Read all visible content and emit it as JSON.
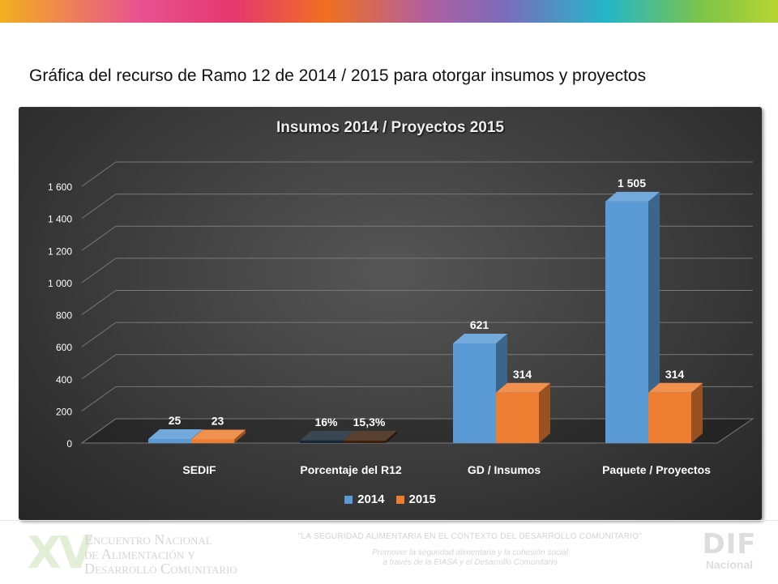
{
  "slide": {
    "title": "Gráfica del recurso de Ramo 12 de 2014 / 2015 para otorgar insumos y proyectos"
  },
  "colors": {
    "series_2014": "#5b9bd5",
    "series_2015": "#ed7d31",
    "background": "#3b3b3b",
    "gridline": "#7a7a7a"
  },
  "chart_data": {
    "type": "bar",
    "title": "Insumos 2014 / Proyectos 2015",
    "categories": [
      "SEDIF",
      "Porcentaje del R12",
      "GD / Insumos",
      "Paquete / Proyectos"
    ],
    "series": [
      {
        "name": "2014",
        "values": [
          25,
          16,
          621,
          1505
        ],
        "labels": [
          "25",
          "16%",
          "621",
          "1 505"
        ]
      },
      {
        "name": "2015",
        "values": [
          23,
          15.3,
          314,
          314
        ],
        "labels": [
          "23",
          "15,3%",
          "314",
          "314"
        ]
      }
    ],
    "ylim": [
      0,
      1600
    ],
    "yticks": [
      0,
      200,
      400,
      600,
      800,
      1000,
      1200,
      1400,
      1600
    ],
    "ytick_labels": [
      "0",
      "200",
      "400",
      "600",
      "800",
      "1 000",
      "1 200",
      "1 400",
      "1 600"
    ],
    "grid": true,
    "legend_position": "bottom",
    "style": "3d-column"
  },
  "footer": {
    "logo_text": "XV",
    "event_name": [
      "Encuentro Nacional",
      "de Alimentación y",
      "Desarrollo Comunitario"
    ],
    "tagline": "\"LA SEGURIDAD ALIMENTARIA EN EL CONTEXTO DEL DESARROLLO COMUNITARIO\"",
    "subtagline": [
      "Promover la seguridad alimentaria y la cohesión social",
      "a través de la EIASA y el Desarrollo Comunitario"
    ],
    "org_logo": "DIF",
    "org_sub": "Nacional"
  }
}
